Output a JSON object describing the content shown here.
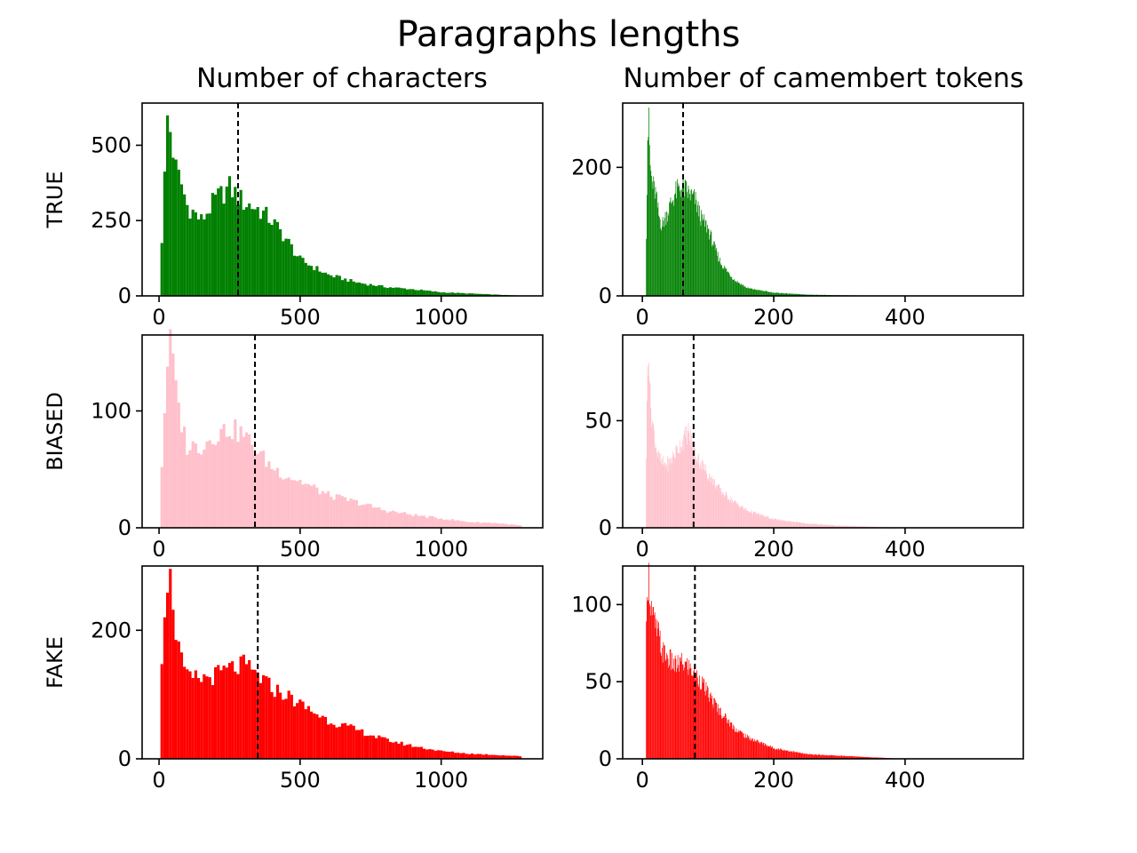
{
  "figure": {
    "title": "Paragraphs lengths",
    "col_titles": [
      "Number of characters",
      "Number of camembert tokens"
    ],
    "row_labels": [
      "TRUE",
      "BIASED",
      "FAKE"
    ]
  },
  "colors": {
    "TRUE": "#008000",
    "BIASED": "#ffc0cb",
    "FAKE": "#ff0000",
    "axis": "#000000",
    "median_line": "#000000"
  },
  "chart_data": [
    {
      "type": "bar",
      "panel": "TRUE-characters",
      "color": "#008000",
      "xlim": [
        -60,
        1360
      ],
      "ylim": [
        0,
        640
      ],
      "xticks": [
        0,
        500,
        1000
      ],
      "yticks": [
        0,
        250,
        500
      ],
      "median": 280,
      "bin_width": 10,
      "hist_x": [
        10,
        30,
        40,
        60,
        80,
        100,
        150,
        200,
        250,
        280,
        300,
        350,
        400,
        450,
        500,
        600,
        700,
        800,
        900,
        1000,
        1100,
        1200,
        1280
      ],
      "hist_y": [
        190,
        590,
        550,
        420,
        370,
        300,
        250,
        320,
        360,
        330,
        310,
        290,
        250,
        190,
        120,
        70,
        45,
        30,
        22,
        12,
        8,
        4,
        1
      ]
    },
    {
      "type": "bar",
      "panel": "TRUE-tokens",
      "color": "#008000",
      "xlim": [
        -30,
        580
      ],
      "ylim": [
        0,
        300
      ],
      "xticks": [
        0,
        200,
        400
      ],
      "yticks": [
        0,
        200
      ],
      "median": 62,
      "bin_width": 1,
      "hist_x": [
        6,
        8,
        10,
        12,
        15,
        20,
        25,
        30,
        40,
        50,
        60,
        70,
        80,
        90,
        100,
        110,
        120,
        140,
        160,
        200,
        250,
        300,
        400
      ],
      "hist_y": [
        100,
        250,
        265,
        200,
        175,
        160,
        125,
        110,
        135,
        160,
        170,
        160,
        150,
        120,
        105,
        75,
        50,
        25,
        12,
        5,
        2,
        1,
        0
      ]
    },
    {
      "type": "bar",
      "panel": "BIASED-characters",
      "color": "#ffc0cb",
      "xlim": [
        -60,
        1360
      ],
      "ylim": [
        0,
        165
      ],
      "xticks": [
        0,
        500,
        1000
      ],
      "yticks": [
        0,
        100
      ],
      "median": 340,
      "bin_width": 10,
      "hist_x": [
        10,
        20,
        30,
        40,
        50,
        60,
        80,
        100,
        150,
        200,
        250,
        300,
        350,
        400,
        450,
        500,
        600,
        700,
        800,
        900,
        1000,
        1100,
        1200,
        1280
      ],
      "hist_y": [
        55,
        100,
        145,
        155,
        145,
        115,
        90,
        70,
        70,
        80,
        85,
        80,
        65,
        52,
        45,
        40,
        28,
        22,
        15,
        11,
        8,
        5,
        4,
        2
      ]
    },
    {
      "type": "bar",
      "panel": "BIASED-tokens",
      "color": "#ffc0cb",
      "xlim": [
        -30,
        580
      ],
      "ylim": [
        0,
        90
      ],
      "xticks": [
        0,
        200,
        400
      ],
      "yticks": [
        0,
        50
      ],
      "median": 78,
      "bin_width": 1,
      "hist_x": [
        6,
        8,
        10,
        12,
        15,
        20,
        25,
        30,
        40,
        50,
        60,
        70,
        80,
        90,
        100,
        120,
        140,
        160,
        200,
        250,
        300,
        400
      ],
      "hist_y": [
        35,
        75,
        85,
        60,
        50,
        40,
        33,
        30,
        30,
        35,
        40,
        45,
        35,
        30,
        25,
        17,
        12,
        8,
        4,
        2,
        1,
        0
      ]
    },
    {
      "type": "bar",
      "panel": "FAKE-characters",
      "color": "#ff0000",
      "xlim": [
        -60,
        1360
      ],
      "ylim": [
        0,
        300
      ],
      "xticks": [
        0,
        500,
        1000
      ],
      "yticks": [
        0,
        200
      ],
      "median": 350,
      "bin_width": 10,
      "hist_x": [
        10,
        20,
        30,
        40,
        50,
        60,
        80,
        100,
        150,
        200,
        250,
        300,
        350,
        400,
        450,
        500,
        600,
        700,
        800,
        900,
        1000,
        1100,
        1200,
        1280
      ],
      "hist_y": [
        165,
        240,
        285,
        275,
        250,
        200,
        150,
        125,
        125,
        130,
        140,
        145,
        130,
        110,
        100,
        85,
        60,
        45,
        30,
        20,
        12,
        8,
        6,
        4
      ]
    },
    {
      "type": "bar",
      "panel": "FAKE-tokens",
      "color": "#ff0000",
      "xlim": [
        -30,
        580
      ],
      "ylim": [
        0,
        125
      ],
      "xticks": [
        0,
        200,
        400
      ],
      "yticks": [
        0,
        50,
        100
      ],
      "median": 80,
      "bin_width": 1,
      "hist_x": [
        6,
        8,
        10,
        12,
        15,
        20,
        25,
        30,
        40,
        50,
        60,
        70,
        80,
        90,
        100,
        120,
        140,
        160,
        200,
        250,
        300,
        350,
        400
      ],
      "hist_y": [
        80,
        115,
        118,
        105,
        95,
        85,
        80,
        70,
        65,
        60,
        62,
        60,
        55,
        50,
        42,
        30,
        20,
        14,
        7,
        3,
        2,
        1,
        0
      ]
    }
  ]
}
